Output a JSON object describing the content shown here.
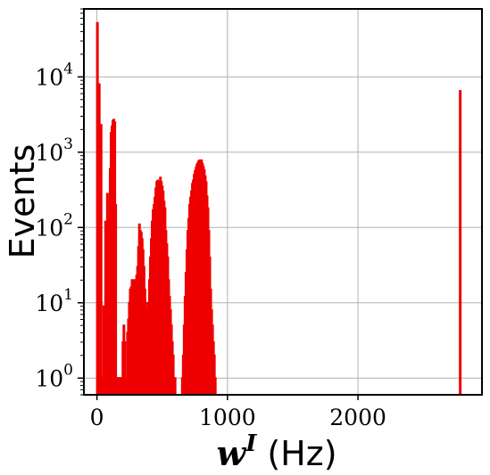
{
  "chart_data": {
    "type": "histogram",
    "ylabel": "Events",
    "xlabel_math": "w",
    "xlabel_sup": "I",
    "xlabel_unit": "(Hz)",
    "xlim": [
      -100,
      2950
    ],
    "ylim": [
      0.6,
      80000
    ],
    "yscale": "log",
    "grid": true,
    "series_color": "#ee0000",
    "x_ticks": [
      {
        "value": 0,
        "label": "0"
      },
      {
        "value": 1000,
        "label": "1000"
      },
      {
        "value": 2000,
        "label": "2000"
      }
    ],
    "y_ticks": [
      {
        "value": 1,
        "base": "10",
        "exp": "0"
      },
      {
        "value": 10,
        "base": "10",
        "exp": "1"
      },
      {
        "value": 100,
        "base": "10",
        "exp": "2"
      },
      {
        "value": 1000,
        "base": "10",
        "exp": "3"
      },
      {
        "value": 10000,
        "base": "10",
        "exp": "4"
      }
    ],
    "bin_width": 7,
    "bins": [
      [
        0,
        52000
      ],
      [
        7,
        1
      ],
      [
        14,
        8000
      ],
      [
        21,
        1
      ],
      [
        28,
        2300
      ],
      [
        35,
        1
      ],
      [
        42,
        1
      ],
      [
        49,
        9
      ],
      [
        56,
        1
      ],
      [
        63,
        120
      ],
      [
        70,
        1
      ],
      [
        77,
        280
      ],
      [
        84,
        5
      ],
      [
        91,
        130
      ],
      [
        98,
        600
      ],
      [
        105,
        1800
      ],
      [
        112,
        2200
      ],
      [
        119,
        2600
      ],
      [
        126,
        2700
      ],
      [
        133,
        2500
      ],
      [
        140,
        200
      ],
      [
        147,
        1
      ],
      [
        154,
        1
      ],
      [
        161,
        0
      ],
      [
        168,
        1
      ],
      [
        175,
        1
      ],
      [
        182,
        1
      ],
      [
        189,
        1
      ],
      [
        196,
        3
      ],
      [
        203,
        5
      ],
      [
        210,
        3
      ],
      [
        217,
        1
      ],
      [
        224,
        1
      ],
      [
        231,
        4
      ],
      [
        238,
        6
      ],
      [
        245,
        10
      ],
      [
        252,
        15
      ],
      [
        259,
        16
      ],
      [
        266,
        20
      ],
      [
        273,
        15
      ],
      [
        280,
        20
      ],
      [
        287,
        18
      ],
      [
        294,
        20
      ],
      [
        301,
        23
      ],
      [
        308,
        30
      ],
      [
        315,
        55
      ],
      [
        322,
        110
      ],
      [
        329,
        90
      ],
      [
        336,
        85
      ],
      [
        343,
        70
      ],
      [
        350,
        50
      ],
      [
        357,
        30
      ],
      [
        364,
        15
      ],
      [
        371,
        10
      ],
      [
        378,
        8
      ],
      [
        385,
        8
      ],
      [
        392,
        10
      ],
      [
        399,
        20
      ],
      [
        406,
        40
      ],
      [
        413,
        70
      ],
      [
        420,
        120
      ],
      [
        427,
        170
      ],
      [
        434,
        200
      ],
      [
        441,
        250
      ],
      [
        448,
        330
      ],
      [
        455,
        400
      ],
      [
        462,
        420
      ],
      [
        469,
        380
      ],
      [
        476,
        400
      ],
      [
        483,
        460
      ],
      [
        490,
        400
      ],
      [
        497,
        350
      ],
      [
        504,
        300
      ],
      [
        511,
        220
      ],
      [
        518,
        180
      ],
      [
        525,
        90
      ],
      [
        532,
        60
      ],
      [
        539,
        40
      ],
      [
        546,
        20
      ],
      [
        553,
        12
      ],
      [
        560,
        8
      ],
      [
        567,
        5
      ],
      [
        574,
        3
      ],
      [
        581,
        2
      ],
      [
        588,
        1
      ],
      [
        595,
        1
      ],
      [
        602,
        0
      ],
      [
        609,
        0
      ],
      [
        616,
        0
      ],
      [
        623,
        0
      ],
      [
        630,
        0
      ],
      [
        637,
        0
      ],
      [
        644,
        0
      ],
      [
        651,
        1
      ],
      [
        658,
        2
      ],
      [
        665,
        5
      ],
      [
        672,
        12
      ],
      [
        679,
        25
      ],
      [
        686,
        50
      ],
      [
        693,
        90
      ],
      [
        700,
        130
      ],
      [
        707,
        200
      ],
      [
        714,
        250
      ],
      [
        721,
        300
      ],
      [
        728,
        380
      ],
      [
        735,
        420
      ],
      [
        742,
        500
      ],
      [
        749,
        560
      ],
      [
        756,
        620
      ],
      [
        763,
        680
      ],
      [
        770,
        720
      ],
      [
        777,
        760
      ],
      [
        784,
        780
      ],
      [
        791,
        740
      ],
      [
        798,
        780
      ],
      [
        805,
        700
      ],
      [
        812,
        640
      ],
      [
        819,
        580
      ],
      [
        826,
        480
      ],
      [
        833,
        400
      ],
      [
        840,
        260
      ],
      [
        847,
        180
      ],
      [
        854,
        90
      ],
      [
        861,
        40
      ],
      [
        868,
        15
      ],
      [
        875,
        8
      ],
      [
        882,
        5
      ],
      [
        889,
        3
      ],
      [
        896,
        2
      ],
      [
        903,
        1
      ],
      [
        910,
        0
      ],
      [
        2780,
        6500
      ]
    ]
  }
}
